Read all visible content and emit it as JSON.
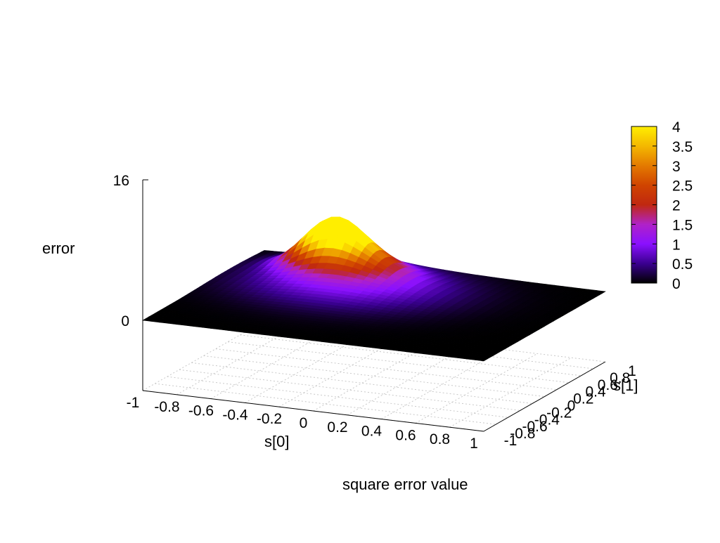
{
  "chart_data": {
    "type": "surface3d",
    "title": "square error value",
    "xlabel": "s[0]",
    "ylabel": "s[1]",
    "zlabel": "error",
    "xlim": [
      -1,
      1
    ],
    "ylim": [
      -1,
      1
    ],
    "zlim": [
      0,
      16
    ],
    "x_ticks": [
      "-1",
      "-0.8",
      "-0.6",
      "-0.4",
      "-0.2",
      "0",
      "0.2",
      "0.4",
      "0.6",
      "0.8",
      "1"
    ],
    "y_ticks": [
      "-1",
      "-0.8",
      "-0.6",
      "-0.4",
      "-0.2",
      "0",
      "0.2",
      "0.4",
      "0.6",
      "0.8",
      "1"
    ],
    "y_tick_labels_shown": [
      "-1",
      "-0.8",
      "-0.6",
      "-0.4",
      "-0.2",
      "0",
      "0.2",
      "0.4",
      "0.6",
      "0.8",
      "1"
    ],
    "z_ticks": [
      "0",
      "16"
    ],
    "grid": true,
    "palette": {
      "name": "black-purple-red-yellow",
      "stops": [
        {
          "value": 0,
          "color": "#000000"
        },
        {
          "value": 0.5,
          "color": "#3a0090"
        },
        {
          "value": 1,
          "color": "#8a10ff"
        },
        {
          "value": 1.5,
          "color": "#b022c8"
        },
        {
          "value": 2,
          "color": "#c02810"
        },
        {
          "value": 2.5,
          "color": "#d04400"
        },
        {
          "value": 3,
          "color": "#e47a00"
        },
        {
          "value": 3.5,
          "color": "#f4b800"
        },
        {
          "value": 4,
          "color": "#ffee00"
        }
      ]
    },
    "colorbar_ticks": [
      "4",
      "3.5",
      "3",
      "2.5",
      "2",
      "1.5",
      "1",
      "0.5",
      "0"
    ],
    "colorbar_range": [
      0,
      4
    ],
    "surface_peaks": [
      {
        "s0": -0.5,
        "s1": 0.7,
        "error": 3.8,
        "spread": 0.16
      },
      {
        "s0": -0.35,
        "s1": 0.6,
        "error": 2.2,
        "spread": 0.2
      },
      {
        "s0": -0.25,
        "s1": 0.35,
        "error": 1.3,
        "spread": 0.38
      }
    ]
  }
}
